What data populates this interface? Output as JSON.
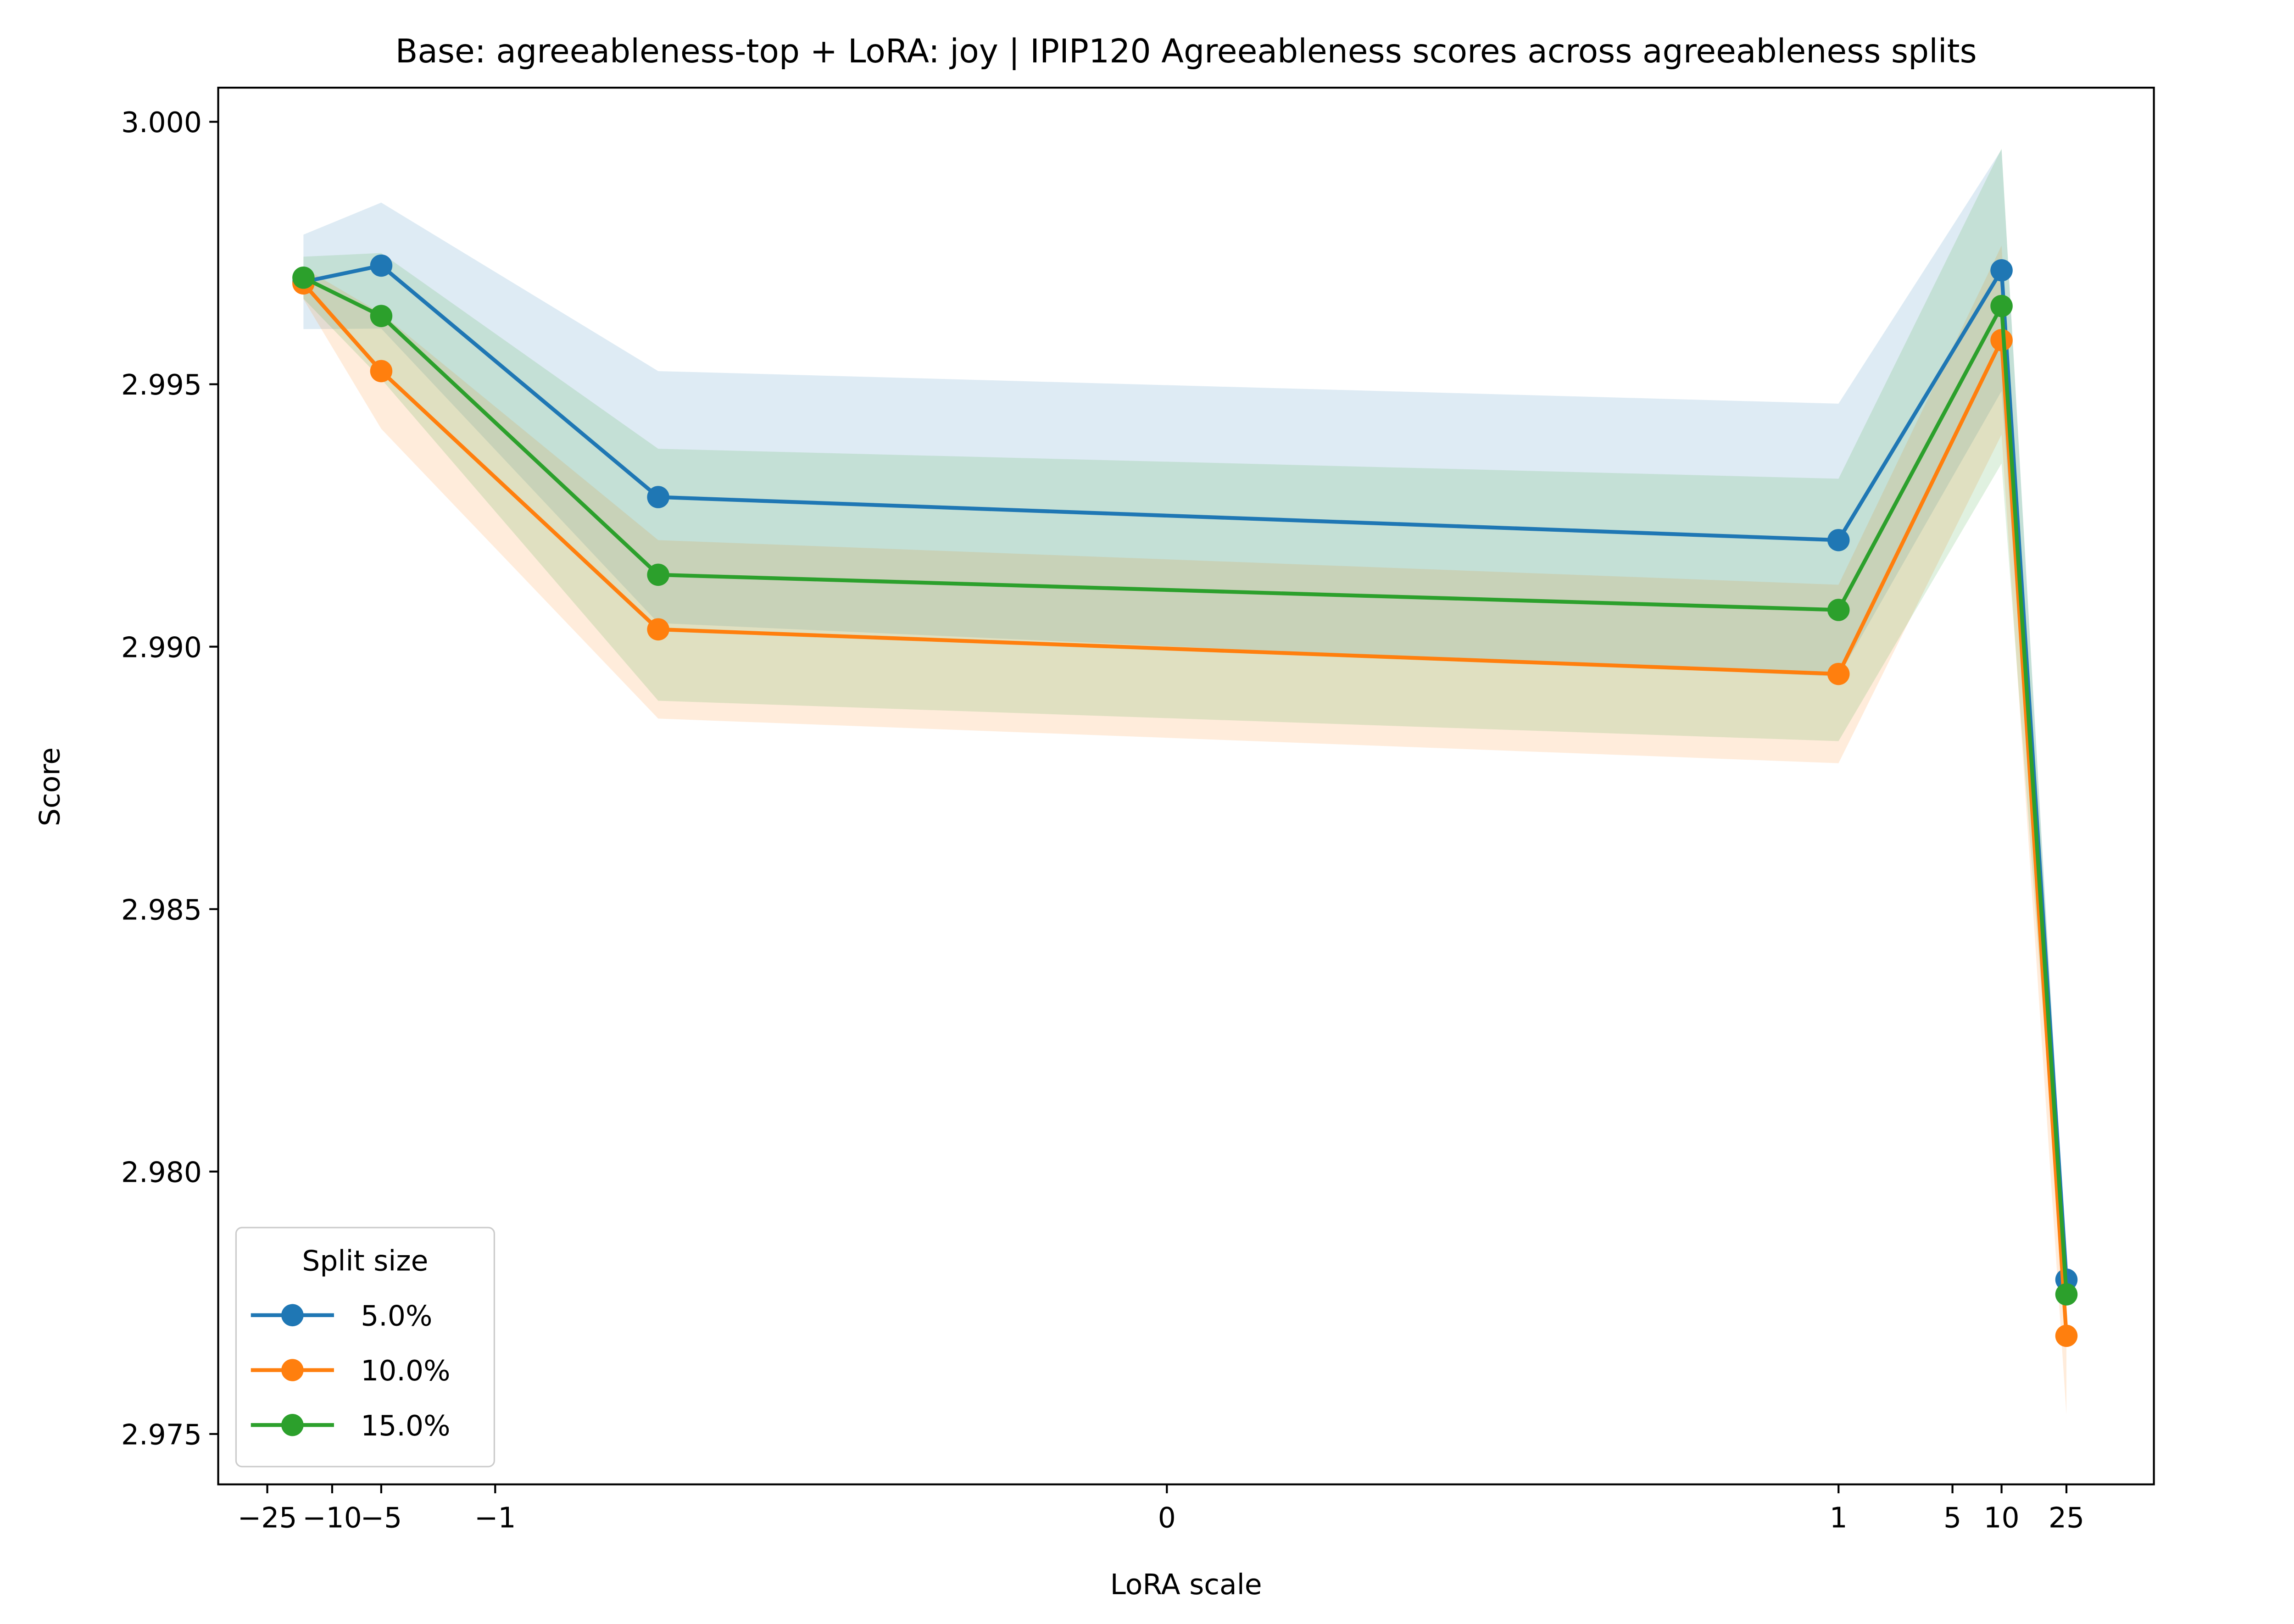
{
  "chart_data": {
    "type": "line",
    "title": "Base: agreeableness-top + LoRA: joy | IPIP120 Agreeableness scores across agreeableness splits",
    "x_label": "LoRA scale",
    "y_label": "Score",
    "x_scale": "symlog",
    "linthresh": 0.1,
    "x": [
      -15,
      -5,
      -0.1,
      1,
      10,
      25
    ],
    "series": [
      {
        "name": "5.0%",
        "color": "#1f77b4",
        "values": [
          2.99695,
          2.99726,
          2.99285,
          2.99203,
          2.99717,
          2.97794
        ],
        "errors": [
          0.0009,
          0.0012,
          0.0024,
          0.0026,
          0.0023,
          0.0003
        ]
      },
      {
        "name": "10.0%",
        "color": "#ff7f0e",
        "values": [
          2.99692,
          2.99525,
          2.99033,
          2.98948,
          2.99584,
          2.97687
        ],
        "errors": [
          0.0003,
          0.0011,
          0.0017,
          0.0017,
          0.0018,
          0.0015
        ]
      },
      {
        "name": "15.0%",
        "color": "#2ca02c",
        "values": [
          2.99703,
          2.9963,
          2.99137,
          2.9907,
          2.99649,
          2.97766
        ],
        "errors": [
          0.0004,
          0.0012,
          0.0024,
          0.0025,
          0.003,
          0.0005
        ]
      }
    ],
    "xlim": [
      -50,
      86
    ],
    "ylim": [
      2.97404,
      3.00065
    ],
    "xticks": [
      {
        "value": -25,
        "label": "−25"
      },
      {
        "value": -10,
        "label": "−10"
      },
      {
        "value": -5,
        "label": "−5"
      },
      {
        "value": -1,
        "label": "−1"
      },
      0,
      1,
      5,
      10,
      25
    ],
    "yticks": [
      {
        "value": 2.975,
        "label": "2.975"
      },
      {
        "value": 2.98,
        "label": "2.980"
      },
      {
        "value": 2.985,
        "label": "2.985"
      },
      {
        "value": 2.99,
        "label": "2.990"
      },
      {
        "value": 2.995,
        "label": "2.995"
      },
      {
        "value": 3,
        "label": "3.000"
      }
    ],
    "legend_title": "Split size",
    "legend_position": "lower left",
    "grid": false
  }
}
